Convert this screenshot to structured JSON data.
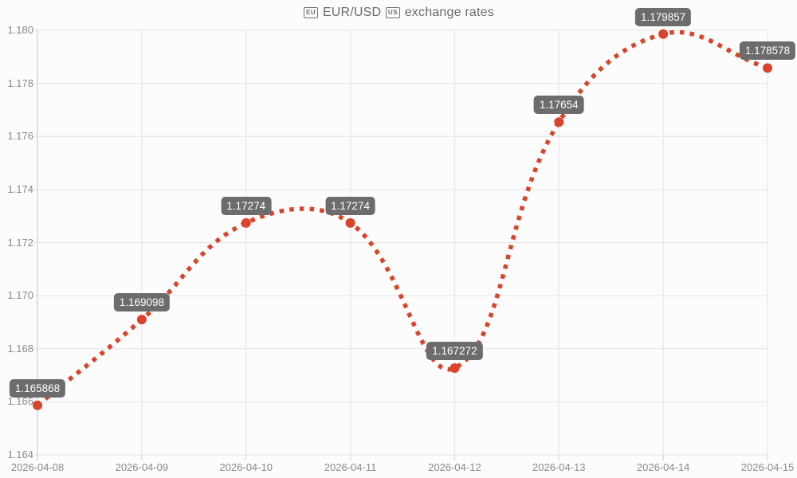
{
  "header": {
    "eu_flag_text": "EU",
    "pair": "EUR/USD",
    "us_flag_text": "US",
    "suffix": "exchange rates"
  },
  "chart_data": {
    "type": "line",
    "title": "🇪🇺 EUR/USD 🇺🇸 exchange rates",
    "categories": [
      "2026-04-08",
      "2026-04-09",
      "2026-04-10",
      "2026-04-11",
      "2026-04-12",
      "2026-04-13",
      "2026-04-14",
      "2026-04-15"
    ],
    "series": [
      {
        "name": "EUR/USD",
        "values": [
          1.165868,
          1.169098,
          1.17274,
          1.17274,
          1.167272,
          1.17654,
          1.179857,
          1.178578
        ]
      }
    ],
    "point_labels": [
      "1.165868",
      "1.169098",
      "1.17274",
      "1.17274",
      "1.167272",
      "1.17654",
      "1.179857",
      "1.178578"
    ],
    "xlabel": "",
    "ylabel": "",
    "ylim": [
      1.164,
      1.18
    ],
    "yticks": [
      "1.164",
      "1.166",
      "1.168",
      "1.170",
      "1.172",
      "1.174",
      "1.176",
      "1.178",
      "1.180"
    ],
    "grid": true,
    "legend": false,
    "line_style": "dotted-curve",
    "colors": {
      "line": "#d9442a",
      "point": "#d9442a",
      "label_bg": "#6c6c6c",
      "label_text": "#ffffff",
      "grid": "#e4e4e4",
      "axis": "#c6c6c6",
      "tick_text": "#8a8a8a",
      "title_text": "#6a6a6a",
      "background": "#fcfcfc"
    }
  }
}
